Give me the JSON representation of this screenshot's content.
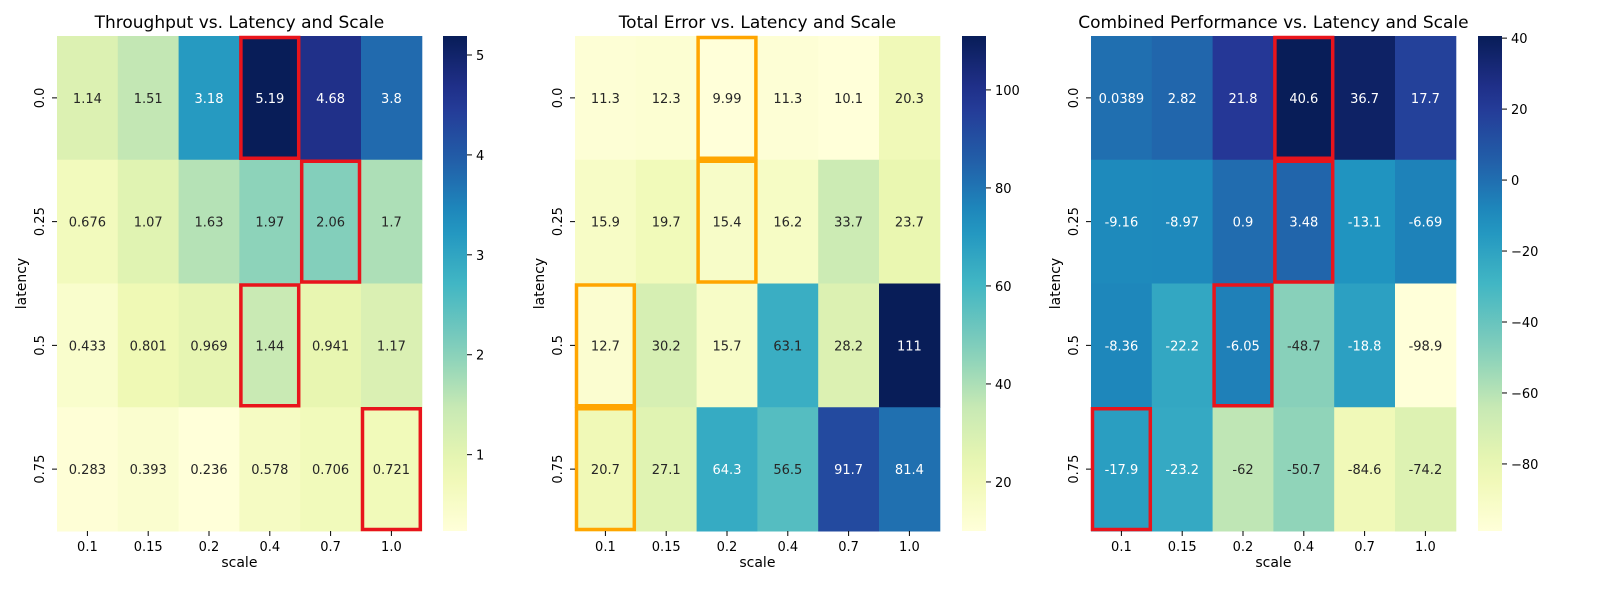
{
  "chart_data": [
    {
      "type": "heatmap",
      "title": "Throughput vs. Latency and Scale",
      "xlabel": "scale",
      "ylabel": "latency",
      "x_categories": [
        "0.1",
        "0.15",
        "0.2",
        "0.4",
        "0.7",
        "1.0"
      ],
      "y_categories": [
        "0.0",
        "0.25",
        "0.5",
        "0.75"
      ],
      "value_labels": [
        [
          "1.14",
          "1.51",
          "3.18",
          "5.19",
          "4.68",
          "3.8"
        ],
        [
          "0.676",
          "1.07",
          "1.63",
          "1.97",
          "2.06",
          "1.7"
        ],
        [
          "0.433",
          "0.801",
          "0.969",
          "1.44",
          "0.941",
          "1.17"
        ],
        [
          "0.283",
          "0.393",
          "0.236",
          "0.578",
          "0.706",
          "0.721"
        ]
      ],
      "colorbar": {
        "min": 0.236,
        "max": 5.19,
        "ticks": [
          "1",
          "2",
          "3",
          "4",
          "5"
        ]
      },
      "colormap": "YlGnBu",
      "highlights": [
        [
          0,
          3
        ],
        [
          1,
          4
        ],
        [
          2,
          3
        ],
        [
          3,
          5
        ]
      ],
      "highlight_color": "#e8141c"
    },
    {
      "type": "heatmap",
      "title": "Total Error vs. Latency and Scale",
      "xlabel": "scale",
      "ylabel": "latency",
      "x_categories": [
        "0.1",
        "0.15",
        "0.2",
        "0.4",
        "0.7",
        "1.0"
      ],
      "y_categories": [
        "0.0",
        "0.25",
        "0.5",
        "0.75"
      ],
      "value_labels": [
        [
          "11.3",
          "12.3",
          "9.99",
          "11.3",
          "10.1",
          "20.3"
        ],
        [
          "15.9",
          "19.7",
          "15.4",
          "16.2",
          "33.7",
          "23.7"
        ],
        [
          "12.7",
          "30.2",
          "15.7",
          "63.1",
          "28.2",
          "111"
        ],
        [
          "20.7",
          "27.1",
          "64.3",
          "56.5",
          "91.7",
          "81.4"
        ]
      ],
      "colorbar": {
        "min": 9.99,
        "max": 111,
        "ticks": [
          "20",
          "40",
          "60",
          "80",
          "100"
        ]
      },
      "colormap": "YlGnBu",
      "highlights": [
        [
          0,
          2
        ],
        [
          1,
          2
        ],
        [
          2,
          0
        ],
        [
          3,
          0
        ]
      ],
      "highlight_color": "#ffa500"
    },
    {
      "type": "heatmap",
      "title": "Combined Performance vs. Latency and Scale",
      "xlabel": "scale",
      "ylabel": "latency",
      "x_categories": [
        "0.1",
        "0.15",
        "0.2",
        "0.4",
        "0.7",
        "1.0"
      ],
      "y_categories": [
        "0.0",
        "0.25",
        "0.5",
        "0.75"
      ],
      "value_labels": [
        [
          "0.0389",
          "2.82",
          "21.8",
          "40.6",
          "36.7",
          "17.7"
        ],
        [
          "-9.16",
          "-8.97",
          "0.9",
          "3.48",
          "-13.1",
          "-6.69"
        ],
        [
          "-8.36",
          "-22.2",
          "-6.05",
          "-48.7",
          "-18.8",
          "-98.9"
        ],
        [
          "-17.9",
          "-23.2",
          "-62",
          "-50.7",
          "-84.6",
          "-74.2"
        ]
      ],
      "colorbar": {
        "min": -98.9,
        "max": 40.6,
        "ticks": [
          "40",
          "20",
          "0",
          "−20",
          "−40",
          "−60",
          "−80"
        ]
      },
      "colormap": "YlGnBu",
      "highlights": [
        [
          0,
          3
        ],
        [
          1,
          3
        ],
        [
          2,
          2
        ],
        [
          3,
          0
        ]
      ],
      "highlight_color": "#e8141c"
    }
  ]
}
